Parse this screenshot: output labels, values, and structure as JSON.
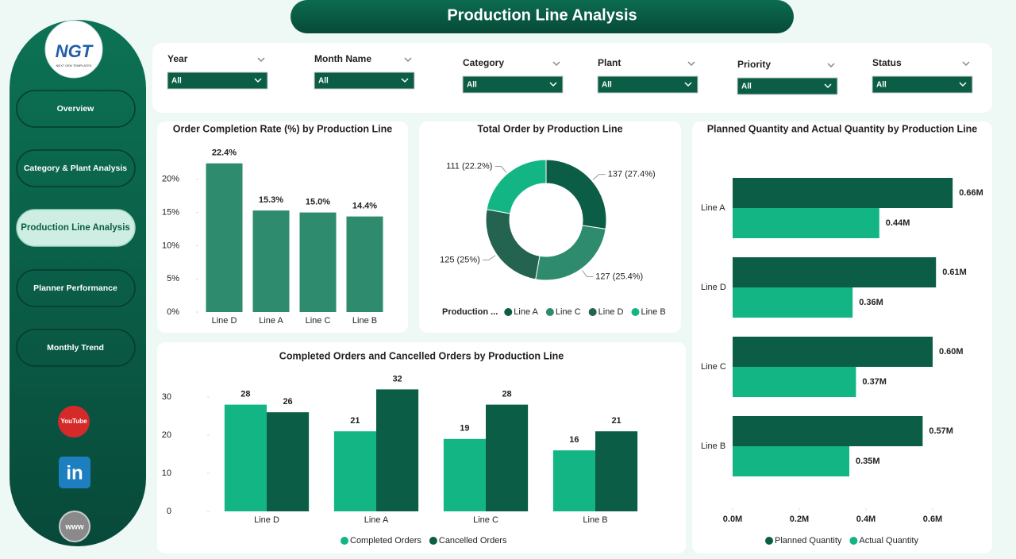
{
  "header": {
    "title": "Production Line Analysis",
    "logo": "NGT",
    "logo_tagline": "NEXT GEN TEMPLATES"
  },
  "nav": {
    "items": [
      "Overview",
      "Category & Plant Analysis",
      "Production Line Analysis",
      "Planner Performance",
      "Monthly Trend"
    ],
    "active": 2
  },
  "icons": [
    "YouTube",
    "in",
    "www"
  ],
  "filters": [
    {
      "label": "Year",
      "value": "All"
    },
    {
      "label": "Month Name",
      "value": "All"
    },
    {
      "label": "Category",
      "value": "All"
    },
    {
      "label": "Plant",
      "value": "All"
    },
    {
      "label": "Priority",
      "value": "All"
    },
    {
      "label": "Status",
      "value": "All"
    }
  ],
  "chart_data": [
    {
      "type": "bar",
      "title": "Order Completion Rate (%) by Production Line",
      "categories": [
        "Line D",
        "Line A",
        "Line C",
        "Line B"
      ],
      "values": [
        22.4,
        15.3,
        15.0,
        14.4
      ],
      "value_labels": [
        "22.4%",
        "15.3%",
        "15.0%",
        "14.4%"
      ],
      "color": "#2e8b6e",
      "ylim": [
        0,
        25
      ],
      "yticks": [
        {
          "value": 0,
          "label": "0%"
        },
        {
          "value": 5,
          "label": "5%"
        },
        {
          "value": 10,
          "label": "10%"
        },
        {
          "value": 15,
          "label": "15%"
        },
        {
          "value": 20,
          "label": "20%"
        }
      ]
    },
    {
      "type": "pie",
      "donut": true,
      "title": "Total Order by Production Line",
      "legend_title": "Production ...",
      "categories": [
        "Line A",
        "Line C",
        "Line D",
        "Line B"
      ],
      "values": [
        137,
        127,
        125,
        111
      ],
      "value_labels": [
        "137 (27.4%)",
        "127 (25.4%)",
        "125 (25%)",
        "111 (22.2%)"
      ],
      "colors": [
        "#0b5e45",
        "#2e8b6e",
        "#23634f",
        "#14b585"
      ]
    },
    {
      "type": "bar",
      "orientation": "horizontal",
      "title": "Planned Quantity and Actual Quantity by Production Line",
      "categories": [
        "Line A",
        "Line D",
        "Line C",
        "Line B"
      ],
      "series": [
        {
          "name": "Planned Quantity",
          "color": "#0b5e45",
          "values": [
            660000,
            610000,
            600000,
            570000
          ],
          "value_labels": [
            "0.66M",
            "0.61M",
            "0.60M",
            "0.57M"
          ]
        },
        {
          "name": "Actual Quantity",
          "color": "#14b585",
          "values": [
            440000,
            360000,
            370000,
            350000
          ],
          "value_labels": [
            "0.44M",
            "0.36M",
            "0.37M",
            "0.35M"
          ]
        }
      ],
      "xlim": [
        0,
        750000
      ],
      "xticks": [
        {
          "value": 0,
          "label": "0.0M"
        },
        {
          "value": 200000,
          "label": "0.2M"
        },
        {
          "value": 400000,
          "label": "0.4M"
        },
        {
          "value": 600000,
          "label": "0.6M"
        }
      ]
    },
    {
      "type": "bar",
      "title": "Completed Orders and Cancelled Orders by Production Line",
      "categories": [
        "Line D",
        "Line A",
        "Line C",
        "Line B"
      ],
      "series": [
        {
          "name": "Completed Orders",
          "color": "#14b585",
          "values": [
            28,
            21,
            19,
            16
          ]
        },
        {
          "name": "Cancelled Orders",
          "color": "#0b5e45",
          "values": [
            26,
            32,
            28,
            21
          ]
        }
      ],
      "ylim": [
        0,
        35
      ],
      "yticks": [
        0,
        10,
        20,
        30
      ]
    }
  ]
}
